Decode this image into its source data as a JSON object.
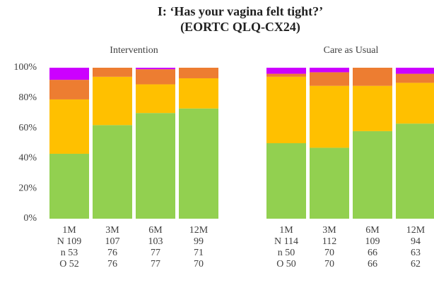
{
  "chart_data": {
    "type": "stacked_bar",
    "title": [
      "I: ‘Has your vagina felt tight?’",
      "(EORTC QLQ-CX24)"
    ],
    "groups": [
      "Intervention",
      "Care as Usual"
    ],
    "categories": [
      [
        "1M",
        "N 109",
        "n 53",
        "O 52"
      ],
      [
        "3M",
        "107",
        "76",
        "76"
      ],
      [
        "6M",
        "103",
        "77",
        "77"
      ],
      [
        "12M",
        "99",
        "71",
        "70"
      ],
      [
        "1M",
        "N 114",
        "n 50",
        "O 50"
      ],
      [
        "3M",
        "112",
        "70",
        "70"
      ],
      [
        "6M",
        "109",
        "66",
        "66"
      ],
      [
        "12M",
        "94",
        "63",
        "62"
      ]
    ],
    "series": [
      {
        "color": "#92d050",
        "values": [
          43,
          62,
          70,
          73,
          50,
          47,
          58,
          63
        ]
      },
      {
        "color": "#ffc000",
        "values": [
          36,
          32,
          19,
          20,
          44,
          41,
          30,
          27
        ]
      },
      {
        "color": "#ed7d31",
        "values": [
          13,
          6,
          10,
          7,
          2,
          9,
          12,
          6
        ]
      },
      {
        "color": "#cc00ff",
        "values": [
          8,
          0,
          1,
          0,
          4,
          3,
          0,
          4
        ]
      }
    ],
    "ylim": [
      0,
      100
    ],
    "yticks": [
      {
        "value": 0,
        "label": "0%"
      },
      {
        "value": 20,
        "label": "20%"
      },
      {
        "value": 40,
        "label": "40%"
      },
      {
        "value": 60,
        "label": "60%"
      },
      {
        "value": 80,
        "label": "80%"
      },
      {
        "value": 100,
        "label": "100%"
      }
    ]
  }
}
